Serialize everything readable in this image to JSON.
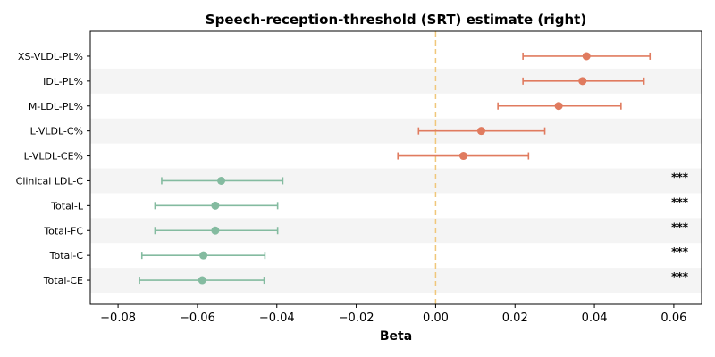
{
  "chart_data": {
    "type": "forest",
    "title": "Speech-reception-threshold (SRT) estimate (right)",
    "xlabel": "Beta",
    "ylabel": "",
    "xlim": [
      -0.087,
      0.067
    ],
    "xticks": [
      -0.08,
      -0.06,
      -0.04,
      -0.02,
      0.0,
      0.02,
      0.04,
      0.06
    ],
    "xtick_labels": [
      "−0.08",
      "−0.06",
      "−0.04",
      "−0.02",
      "0.00",
      "0.02",
      "0.04",
      "0.06"
    ],
    "reference_line": 0.0,
    "rows": [
      {
        "label": "XS-VLDL-PL%",
        "beta": 0.038,
        "ci_low": 0.022,
        "ci_high": 0.054,
        "sig": ""
      },
      {
        "label": "IDL-PL%",
        "beta": 0.037,
        "ci_low": 0.022,
        "ci_high": 0.0525,
        "sig": ""
      },
      {
        "label": "M-LDL-PL%",
        "beta": 0.031,
        "ci_low": 0.0157,
        "ci_high": 0.0467,
        "sig": ""
      },
      {
        "label": "L-VLDL-C%",
        "beta": 0.0115,
        "ci_low": -0.0043,
        "ci_high": 0.0275,
        "sig": ""
      },
      {
        "label": "L-VLDL-CE%",
        "beta": 0.007,
        "ci_low": -0.0095,
        "ci_high": 0.0234,
        "sig": ""
      },
      {
        "label": "Clinical LDL-C",
        "beta": -0.054,
        "ci_low": -0.069,
        "ci_high": -0.0385,
        "sig": "***"
      },
      {
        "label": "Total-L",
        "beta": -0.0555,
        "ci_low": -0.0707,
        "ci_high": -0.0398,
        "sig": "***"
      },
      {
        "label": "Total-FC",
        "beta": -0.0555,
        "ci_low": -0.0707,
        "ci_high": -0.0398,
        "sig": "***"
      },
      {
        "label": "Total-C",
        "beta": -0.0585,
        "ci_low": -0.074,
        "ci_high": -0.043,
        "sig": "***"
      },
      {
        "label": "Total-CE",
        "beta": -0.0588,
        "ci_low": -0.0746,
        "ci_high": -0.0432,
        "sig": "***"
      }
    ],
    "colors": {
      "positive": "#e07b5f",
      "negative": "#84bba0",
      "reference_line": "#f0c77a",
      "band": "#f4f4f4"
    }
  }
}
